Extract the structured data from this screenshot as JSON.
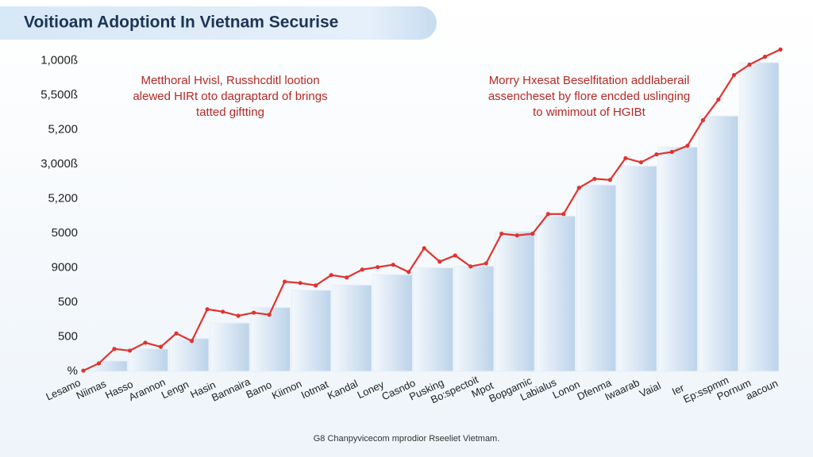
{
  "chart_data": {
    "type": "bar_line",
    "title": "Voitioam Adoptiont In Vietnam  Securise",
    "footnote": "G8 Chanpyvicecom mprodior Rseeliet Vietmam.",
    "annotations": [
      {
        "lines": [
          "Metthoral Hvisl, Russhcditl lootion",
          "alewed HIRt oto dagraptard of brings",
          "tatted giftting"
        ]
      },
      {
        "lines": [
          "Morry Hxesat Beselfitation addlaberail",
          "assencheset by flore encded uslinging",
          "to wimimout of HGIBt"
        ]
      }
    ],
    "ylim": [
      0,
      9.5
    ],
    "yticks": [
      {
        "value": 0,
        "label": "%"
      },
      {
        "value": 1,
        "label": "500"
      },
      {
        "value": 2,
        "label": "500"
      },
      {
        "value": 3,
        "label": "9000"
      },
      {
        "value": 4,
        "label": "5000"
      },
      {
        "value": 5,
        "label": "5,200"
      },
      {
        "value": 6,
        "label": "3,000ß"
      },
      {
        "value": 7,
        "label": "5,200"
      },
      {
        "value": 8,
        "label": "5,500ß"
      },
      {
        "value": 9,
        "label": "1,000ß"
      }
    ],
    "x_tick_labels": [
      "Lesamo",
      "Niimas",
      "Hasso",
      "Arannon",
      "Lengn",
      "Hasin",
      "Bannaira",
      "Bamo",
      "Kiimon",
      "Iotmat",
      "Kandal",
      "Loney",
      "Casndo",
      "Pusking",
      "Bo:spectoit",
      "Mpot",
      "Bopgamic",
      "Labialus",
      "Lonon",
      "Dfenma",
      "Iwaarab",
      "Vaial",
      "Ier",
      "Ep:sspmm",
      "Pornum",
      "aacoun"
    ],
    "series": [
      {
        "kind": "bar",
        "color": "#bcd3ea",
        "values": [
          0.3,
          0.65,
          0.95,
          1.4,
          1.85,
          2.35,
          2.5,
          2.8,
          3.0,
          3.05,
          4.05,
          4.5,
          5.4,
          5.95,
          6.5,
          7.4,
          8.95
        ]
      },
      {
        "kind": "line",
        "color": "#e0332f",
        "values": [
          0.02,
          0.23,
          0.65,
          0.6,
          0.83,
          0.71,
          1.1,
          0.88,
          1.8,
          1.73,
          1.61,
          1.7,
          1.64,
          2.6,
          2.56,
          2.49,
          2.79,
          2.72,
          2.95,
          3.02,
          3.09,
          2.88,
          3.57,
          3.18,
          3.36,
          3.04,
          3.13,
          3.99,
          3.94,
          3.99,
          4.56,
          4.56,
          5.32,
          5.58,
          5.55,
          6.18,
          6.06,
          6.29,
          6.36,
          6.54,
          7.28,
          7.88,
          8.59,
          8.89,
          9.12,
          9.33
        ]
      }
    ]
  }
}
